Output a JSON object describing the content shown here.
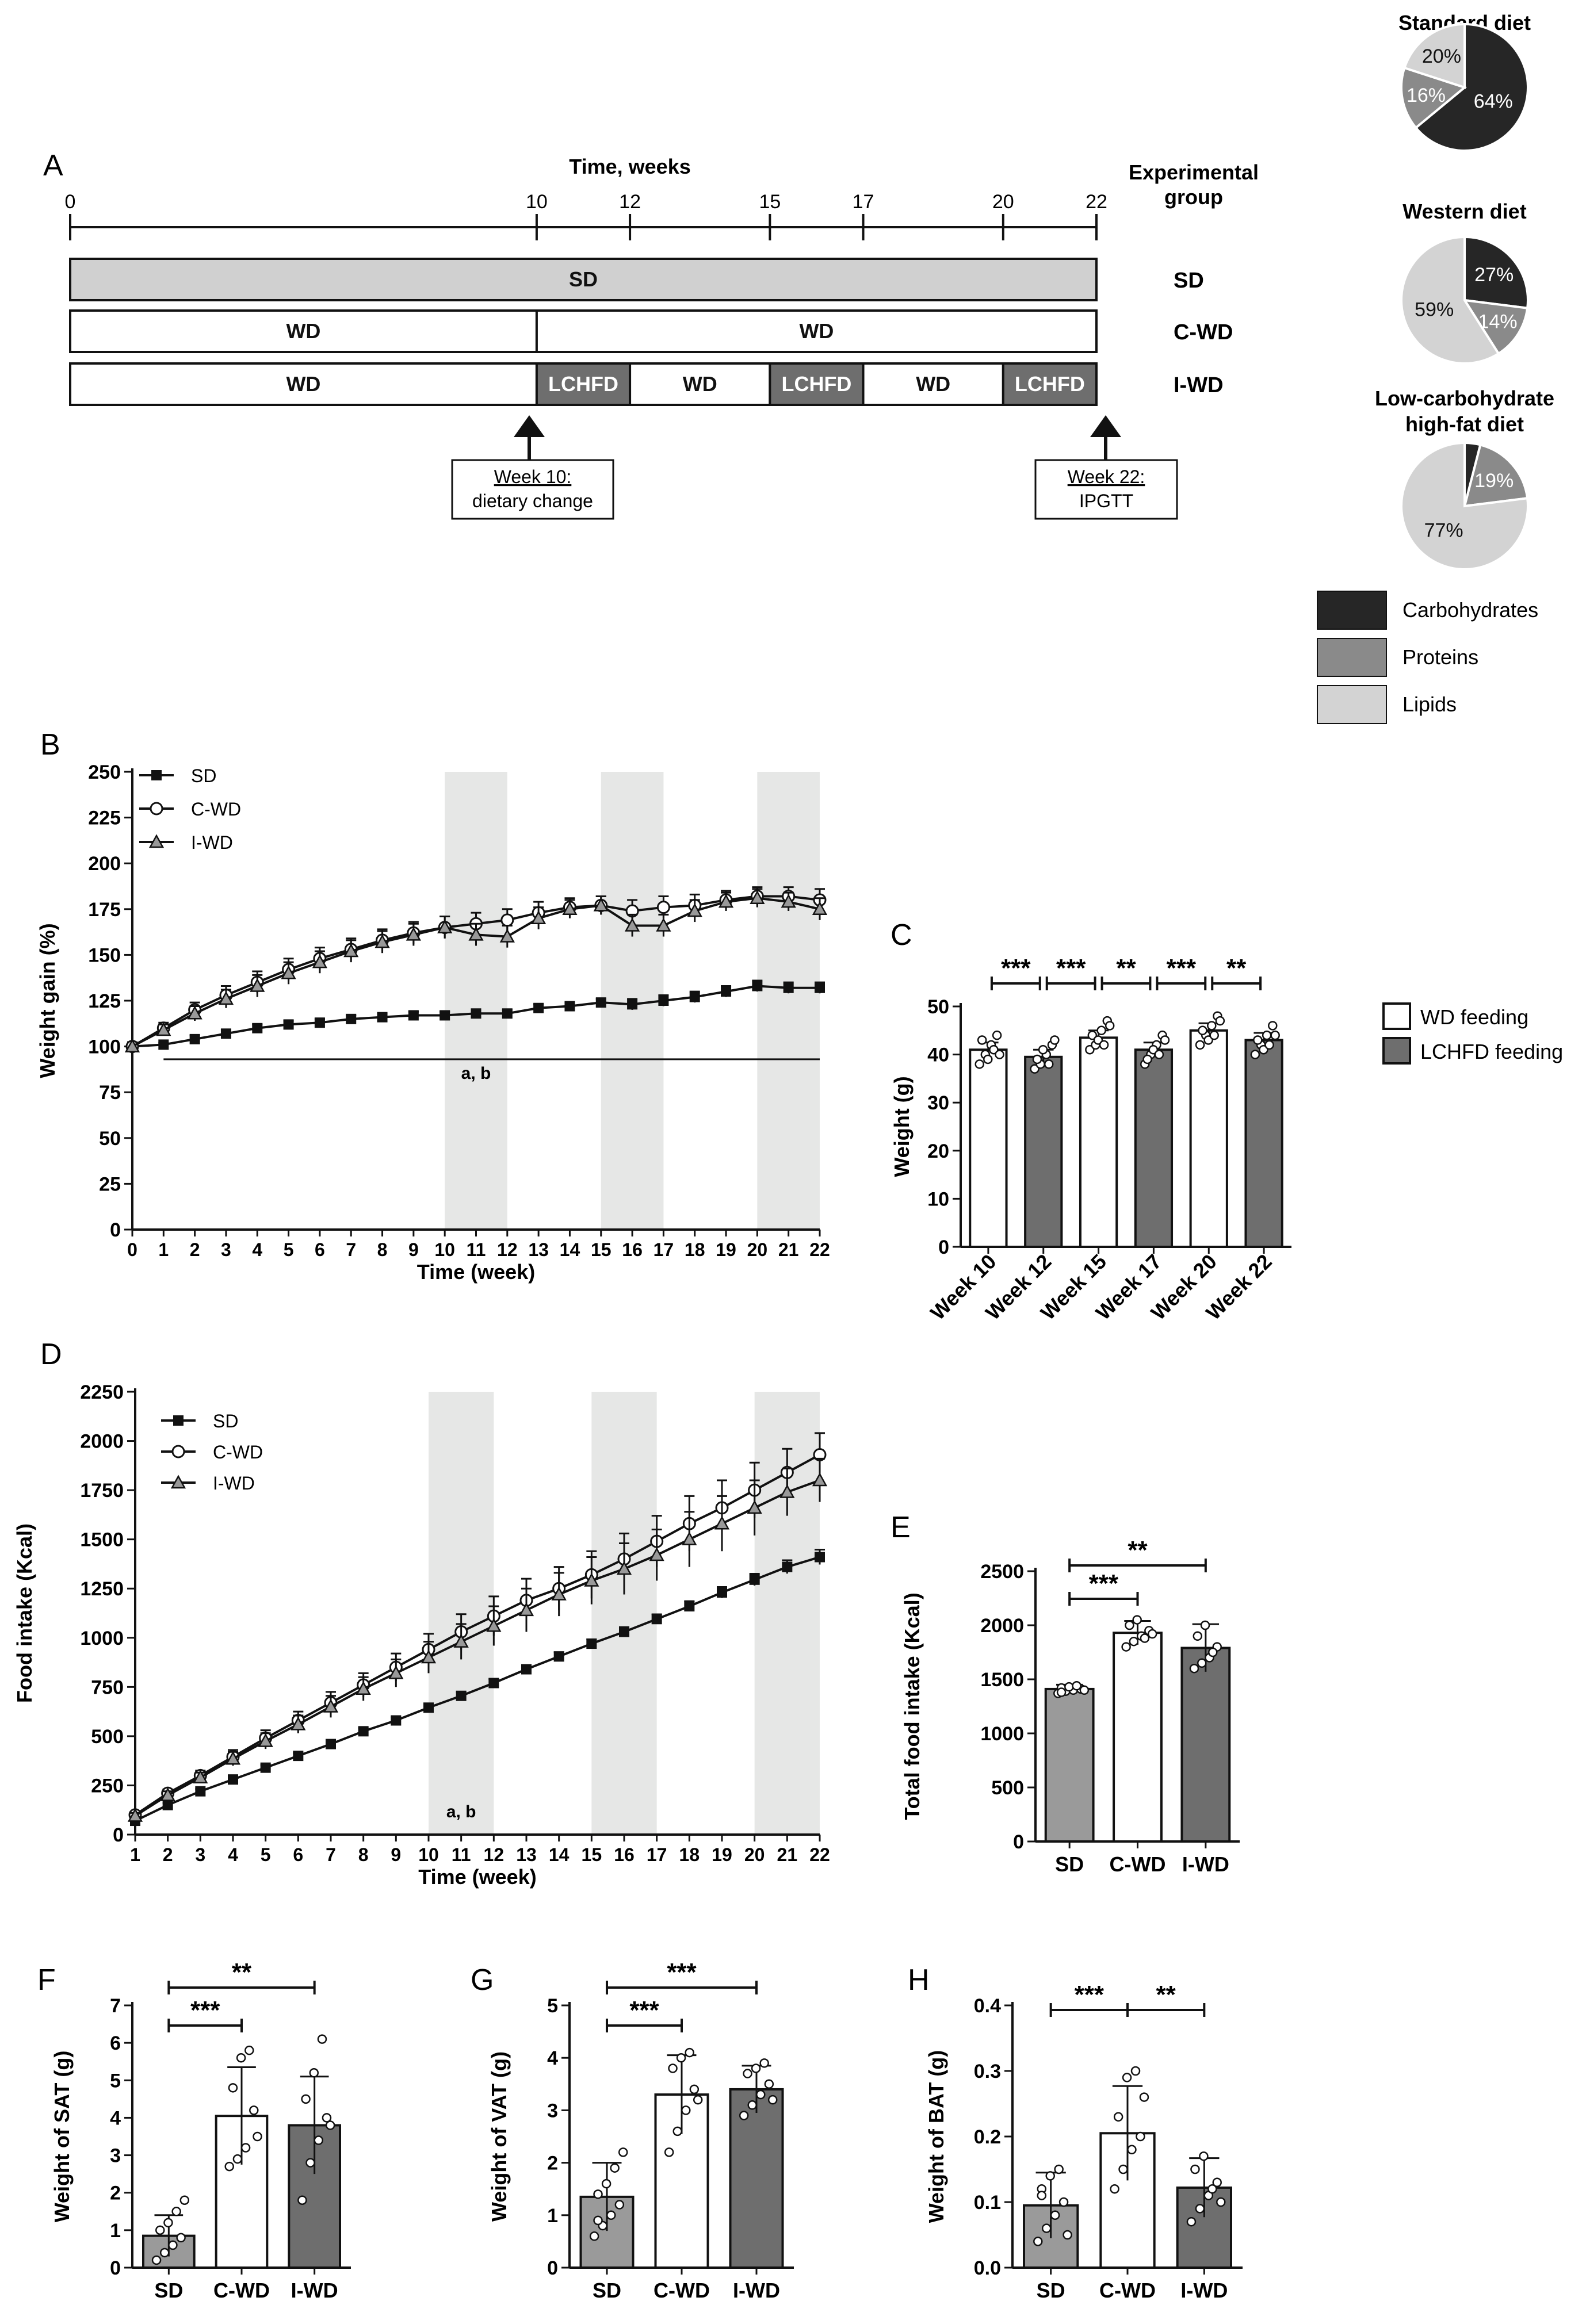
{
  "panel_labels": {
    "A": "A",
    "B": "B",
    "C": "C",
    "D": "D",
    "E": "E",
    "F": "F",
    "G": "G",
    "H": "H"
  },
  "colors": {
    "sd": "#d0d0d0",
    "cwd": "#ffffff",
    "iwd": "#6e6e6e",
    "gray_bar": "#9a9a9a",
    "carb": "#262626",
    "prot": "#8a8a8a",
    "lip": "#d3d3d3",
    "shade": "#e6e7e6",
    "ink": "#111111"
  },
  "panelA": {
    "time_label": "Time, weeks",
    "group_label_1": "Experimental",
    "group_label_2": "group",
    "ticks": [
      "0",
      "10",
      "12",
      "15",
      "17",
      "20",
      "22"
    ],
    "rows": [
      {
        "group": "SD",
        "segments": [
          {
            "label": "SD",
            "start": 0,
            "end": 22,
            "fill": "gray"
          }
        ]
      },
      {
        "group": "C-WD",
        "segments": [
          {
            "label": "WD",
            "start": 0,
            "end": 10,
            "fill": "white"
          },
          {
            "label": "WD",
            "start": 10,
            "end": 22,
            "fill": "white"
          }
        ]
      },
      {
        "group": "I-WD",
        "segments": [
          {
            "label": "WD",
            "start": 0,
            "end": 10,
            "fill": "white"
          },
          {
            "label": "LCHFD",
            "start": 10,
            "end": 12,
            "fill": "dark"
          },
          {
            "label": "WD",
            "start": 12,
            "end": 15,
            "fill": "white"
          },
          {
            "label": "LCHFD",
            "start": 15,
            "end": 17,
            "fill": "dark"
          },
          {
            "label": "WD",
            "start": 17,
            "end": 20,
            "fill": "white"
          },
          {
            "label": "LCHFD",
            "start": 20,
            "end": 22,
            "fill": "dark"
          }
        ]
      }
    ],
    "box1_line1": "Week 10:",
    "box1_line2": "dietary change",
    "box2_line1": "Week 22:",
    "box2_line2": "IPGTT"
  },
  "pies": {
    "items": [
      {
        "title": "Standard diet",
        "title2": "",
        "carb": 64,
        "prot": 16,
        "lip": 20,
        "carb_label": "64%",
        "prot_label": "16%",
        "lip_label": "20%"
      },
      {
        "title": "Western diet",
        "title2": "",
        "carb": 27,
        "prot": 14,
        "lip": 59,
        "carb_label": "27%",
        "prot_label": "14%",
        "lip_label": "59%"
      },
      {
        "title": "Low-carbohydrate",
        "title2": "high-fat diet",
        "carb": 4,
        "prot": 19,
        "lip": 77,
        "carb_label": "",
        "prot_label": "19%",
        "lip_label": "77%"
      }
    ],
    "legend": [
      "Carbohydrates",
      "Proteins",
      "Lipids"
    ]
  },
  "chart_data": [
    {
      "id": "B",
      "type": "line",
      "xlabel": "Time (week)",
      "ylabel": "Weight gain (%)",
      "ylim": [
        0,
        250
      ],
      "yticks": [
        0,
        25,
        50,
        75,
        100,
        125,
        150,
        175,
        200,
        225,
        250
      ],
      "x": [
        0,
        1,
        2,
        3,
        4,
        5,
        6,
        7,
        8,
        9,
        10,
        11,
        12,
        13,
        14,
        15,
        16,
        17,
        18,
        19,
        20,
        21,
        22
      ],
      "shaded": [
        [
          10,
          12
        ],
        [
          15,
          17
        ],
        [
          20,
          22
        ]
      ],
      "annotation": "a, b",
      "series": [
        {
          "name": "SD",
          "marker": "square",
          "values": [
            100,
            101,
            104,
            107,
            110,
            112,
            113,
            115,
            116,
            117,
            117,
            118,
            118,
            121,
            122,
            124,
            123,
            125,
            127,
            130,
            133,
            132,
            132
          ],
          "err": [
            0,
            1,
            2,
            2,
            2,
            2,
            2,
            2,
            2,
            2,
            2,
            2,
            2,
            2,
            2,
            2,
            3,
            3,
            3,
            3,
            3,
            3,
            3
          ]
        },
        {
          "name": "C-WD",
          "marker": "circle",
          "values": [
            100,
            110,
            120,
            128,
            135,
            142,
            148,
            153,
            158,
            162,
            165,
            167,
            169,
            173,
            176,
            177,
            174,
            176,
            177,
            180,
            182,
            182,
            180
          ],
          "err": [
            0,
            3,
            4,
            5,
            6,
            6,
            6,
            6,
            6,
            6,
            6,
            6,
            6,
            6,
            5,
            5,
            6,
            6,
            6,
            5,
            5,
            5,
            6
          ]
        },
        {
          "name": "I-WD",
          "marker": "triangle",
          "values": [
            100,
            109,
            118,
            126,
            133,
            140,
            146,
            152,
            157,
            161,
            165,
            161,
            160,
            170,
            175,
            177,
            166,
            166,
            174,
            179,
            181,
            179,
            175
          ],
          "err": [
            0,
            3,
            4,
            5,
            6,
            6,
            6,
            6,
            6,
            6,
            6,
            6,
            6,
            6,
            5,
            5,
            6,
            6,
            6,
            5,
            5,
            5,
            6
          ]
        }
      ]
    },
    {
      "id": "C",
      "type": "bar",
      "ylabel": "Weight (g)",
      "ylim": [
        0,
        50
      ],
      "yticks": [
        0,
        10,
        20,
        30,
        40,
        50
      ],
      "categories": [
        "Week 10",
        "Week 12",
        "Week 15",
        "Week 17",
        "Week 20",
        "Week 22"
      ],
      "values": [
        41,
        39.5,
        43.5,
        41,
        45,
        43
      ],
      "err": [
        1.5,
        1.5,
        1.5,
        1.5,
        1.5,
        1.5
      ],
      "fills": [
        "white",
        "dark",
        "white",
        "dark",
        "white",
        "dark"
      ],
      "points": [
        [
          38,
          40,
          42,
          44,
          43,
          39,
          41,
          40
        ],
        [
          37,
          38,
          40,
          42,
          39,
          41,
          38,
          43
        ],
        [
          41,
          42,
          45,
          47,
          44,
          43,
          42,
          46
        ],
        [
          38,
          40,
          42,
          44,
          39,
          41,
          40,
          43
        ],
        [
          42,
          44,
          46,
          48,
          45,
          43,
          44,
          47
        ],
        [
          40,
          42,
          44,
          46,
          43,
          41,
          42,
          44
        ]
      ],
      "brackets": [
        {
          "from": 0,
          "to": 1,
          "label": "***"
        },
        {
          "from": 1,
          "to": 2,
          "label": "***"
        },
        {
          "from": 2,
          "to": 3,
          "label": "**"
        },
        {
          "from": 3,
          "to": 4,
          "label": "***"
        },
        {
          "from": 4,
          "to": 5,
          "label": "**"
        }
      ],
      "legend": [
        "WD feeding",
        "LCHFD feeding"
      ]
    },
    {
      "id": "D",
      "type": "line",
      "xlabel": "Time (week)",
      "ylabel": "Food intake (Kcal)",
      "ylim": [
        0,
        2250
      ],
      "yticks": [
        0,
        250,
        500,
        750,
        1000,
        1250,
        1500,
        1750,
        2000,
        2250
      ],
      "x": [
        1,
        2,
        3,
        4,
        5,
        6,
        7,
        8,
        9,
        10,
        11,
        12,
        13,
        14,
        15,
        16,
        17,
        18,
        19,
        20,
        21,
        22
      ],
      "shaded": [
        [
          10,
          12
        ],
        [
          15,
          17
        ],
        [
          20,
          22
        ]
      ],
      "annotation": "a, b",
      "series": [
        {
          "name": "SD",
          "marker": "square",
          "values": [
            70,
            150,
            220,
            280,
            340,
            400,
            460,
            525,
            580,
            645,
            705,
            770,
            840,
            905,
            970,
            1030,
            1095,
            1160,
            1230,
            1295,
            1360,
            1410
          ],
          "err": [
            8,
            10,
            12,
            12,
            14,
            14,
            15,
            16,
            16,
            18,
            18,
            20,
            20,
            22,
            22,
            24,
            24,
            26,
            28,
            30,
            34,
            38
          ]
        },
        {
          "name": "C-WD",
          "marker": "circle",
          "values": [
            100,
            210,
            300,
            395,
            490,
            580,
            670,
            760,
            850,
            940,
            1030,
            1110,
            1190,
            1250,
            1320,
            1400,
            1490,
            1580,
            1660,
            1750,
            1840,
            1930
          ],
          "err": [
            15,
            20,
            25,
            35,
            40,
            45,
            55,
            60,
            70,
            80,
            90,
            100,
            110,
            110,
            120,
            130,
            130,
            140,
            140,
            140,
            120,
            110
          ]
        },
        {
          "name": "I-WD",
          "marker": "triangle",
          "values": [
            95,
            200,
            290,
            385,
            475,
            560,
            650,
            740,
            820,
            900,
            980,
            1060,
            1140,
            1220,
            1290,
            1350,
            1420,
            1500,
            1580,
            1660,
            1740,
            1800
          ],
          "err": [
            15,
            20,
            25,
            35,
            40,
            45,
            55,
            60,
            70,
            80,
            90,
            100,
            110,
            110,
            120,
            130,
            130,
            140,
            140,
            140,
            120,
            110
          ]
        }
      ]
    },
    {
      "id": "E",
      "type": "bar",
      "ylabel": "Total food intake (Kcal)",
      "ylim": [
        0,
        2500
      ],
      "yticks": [
        0,
        500,
        1000,
        1500,
        2000,
        2500
      ],
      "categories": [
        "SD",
        "C-WD",
        "I-WD"
      ],
      "values": [
        1410,
        1930,
        1790
      ],
      "err": [
        40,
        110,
        220
      ],
      "fills": [
        "gray",
        "white",
        "dark"
      ],
      "points": [
        [
          1370,
          1390,
          1400,
          1410,
          1420,
          1430,
          1440,
          1400,
          1380
        ],
        [
          1800,
          1850,
          1900,
          1950,
          2000,
          2050,
          1880,
          1920
        ],
        [
          1600,
          1650,
          1700,
          1800,
          1900,
          2000,
          1750
        ]
      ],
      "brackets": [
        {
          "from": 0,
          "to": 1,
          "label": "***"
        },
        {
          "from": 0,
          "to": 2,
          "label": "**"
        }
      ]
    },
    {
      "id": "F",
      "type": "bar",
      "ylabel": "Weight of SAT (g)",
      "ylim": [
        0,
        7
      ],
      "yticks": [
        0,
        1,
        2,
        3,
        4,
        5,
        6,
        7
      ],
      "categories": [
        "SD",
        "C-WD",
        "I-WD"
      ],
      "values": [
        0.85,
        4.05,
        3.8
      ],
      "err": [
        0.55,
        1.3,
        1.3
      ],
      "fills": [
        "gray",
        "white",
        "dark"
      ],
      "points": [
        [
          0.2,
          0.4,
          0.6,
          0.8,
          1.0,
          1.2,
          1.5,
          1.8
        ],
        [
          2.7,
          2.9,
          3.2,
          4.2,
          4.8,
          5.6,
          5.8,
          3.5
        ],
        [
          1.8,
          2.8,
          3.4,
          4.0,
          4.5,
          5.2,
          6.1,
          3.8
        ]
      ],
      "brackets": [
        {
          "from": 0,
          "to": 1,
          "label": "***"
        },
        {
          "from": 0,
          "to": 2,
          "label": "**"
        }
      ]
    },
    {
      "id": "G",
      "type": "bar",
      "ylabel": "Weight of VAT (g)",
      "ylim": [
        0,
        5
      ],
      "yticks": [
        0,
        1,
        2,
        3,
        4,
        5
      ],
      "categories": [
        "SD",
        "C-WD",
        "I-WD"
      ],
      "values": [
        1.35,
        3.3,
        3.4
      ],
      "err": [
        0.65,
        0.75,
        0.45
      ],
      "fills": [
        "gray",
        "white",
        "dark"
      ],
      "points": [
        [
          0.6,
          0.8,
          1.0,
          1.2,
          1.4,
          1.6,
          1.9,
          2.2,
          0.9
        ],
        [
          2.2,
          2.6,
          3.0,
          3.4,
          3.8,
          4.0,
          4.1,
          3.2
        ],
        [
          2.9,
          3.1,
          3.3,
          3.5,
          3.7,
          3.8,
          3.9,
          3.2
        ]
      ],
      "brackets": [
        {
          "from": 0,
          "to": 1,
          "label": "***"
        },
        {
          "from": 0,
          "to": 2,
          "label": "***"
        }
      ]
    },
    {
      "id": "H",
      "type": "bar",
      "ylabel": "Weight of BAT (g)",
      "ylim": [
        0,
        0.4
      ],
      "yticks": [
        0.0,
        0.1,
        0.2,
        0.3,
        0.4
      ],
      "tickdigits": 1,
      "categories": [
        "SD",
        "C-WD",
        "I-WD"
      ],
      "values": [
        0.095,
        0.205,
        0.122
      ],
      "err": [
        0.05,
        0.072,
        0.045
      ],
      "fills": [
        "gray",
        "white",
        "dark"
      ],
      "points": [
        [
          0.04,
          0.06,
          0.08,
          0.1,
          0.12,
          0.14,
          0.15,
          0.05,
          0.11
        ],
        [
          0.12,
          0.15,
          0.18,
          0.2,
          0.23,
          0.29,
          0.3,
          0.26
        ],
        [
          0.07,
          0.09,
          0.11,
          0.13,
          0.15,
          0.17,
          0.12,
          0.1
        ]
      ],
      "brackets": [
        {
          "from": 0,
          "to": 1,
          "label": "***"
        },
        {
          "from": 1,
          "to": 2,
          "label": "**"
        }
      ]
    }
  ]
}
